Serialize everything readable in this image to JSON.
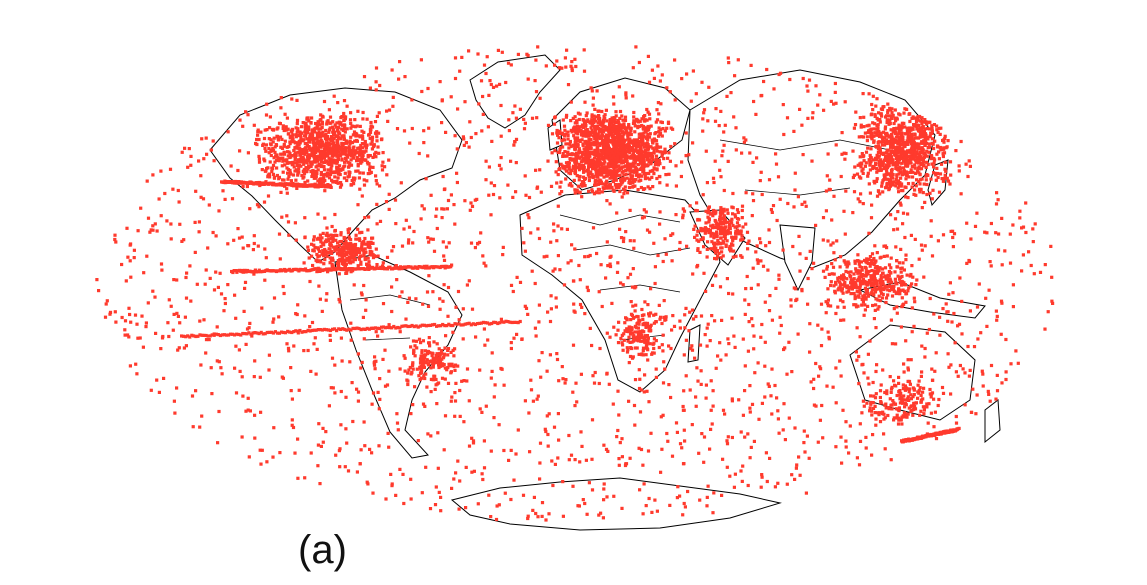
{
  "figure": {
    "panel_label": "(a)",
    "projection": "mollweide",
    "point_color": "#ff3a2d",
    "land_fill": "#ffffff",
    "border_color": "#000000",
    "background": "#ffffff",
    "graticule_visible": false
  }
}
